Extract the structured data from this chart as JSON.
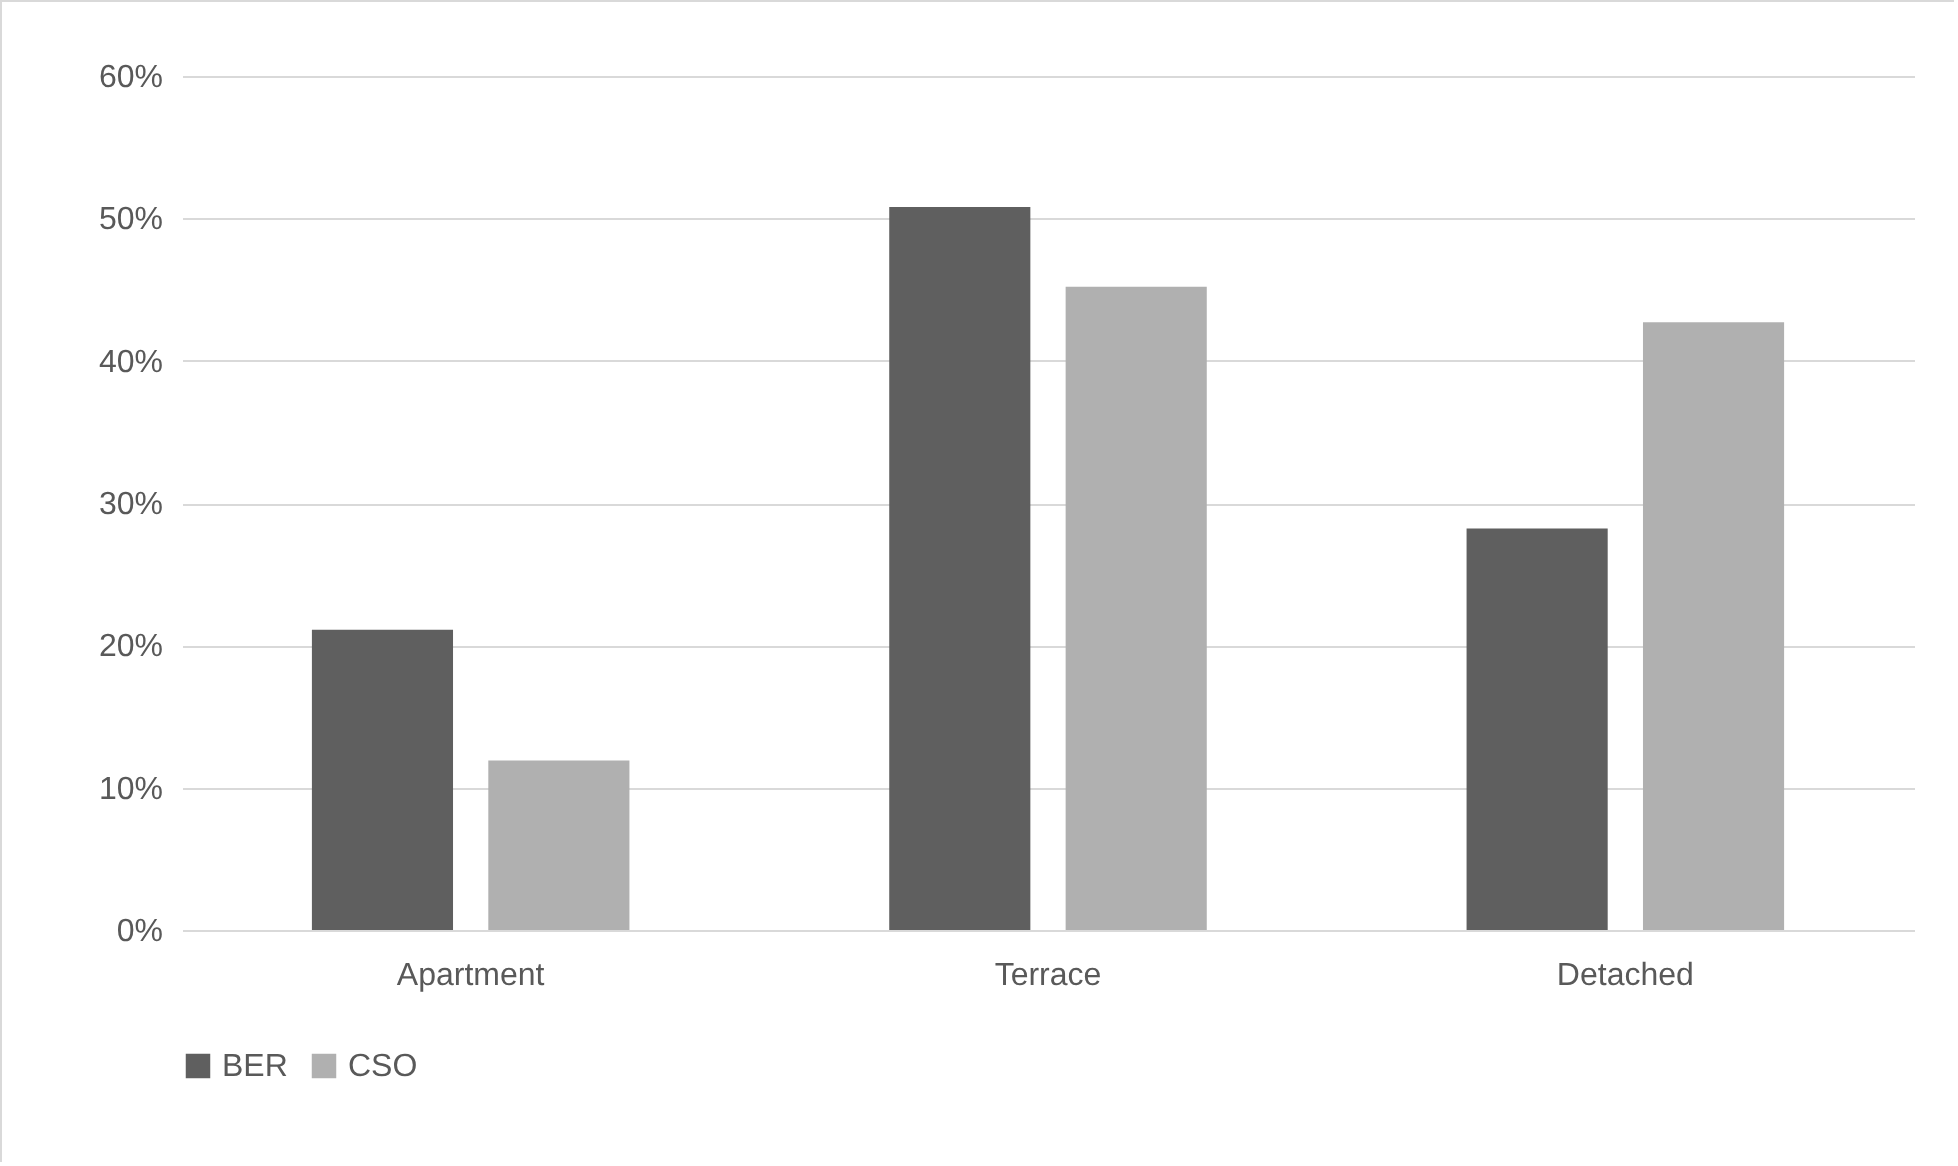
{
  "chart_data": {
    "type": "bar",
    "categories": [
      "Apartment",
      "Terrace",
      "Detached"
    ],
    "series": [
      {
        "name": "BER",
        "color": "#5f5f5f",
        "values": [
          21.1,
          50.8,
          28.2
        ]
      },
      {
        "name": "CSO",
        "color": "#b0b0b0",
        "values": [
          11.9,
          45.2,
          42.7
        ]
      }
    ],
    "ylim": [
      0,
      60
    ],
    "yticks": [
      {
        "value": 0,
        "label": "0%"
      },
      {
        "value": 10,
        "label": "10%"
      },
      {
        "value": 20,
        "label": "20%"
      },
      {
        "value": 30,
        "label": "30%"
      },
      {
        "value": 40,
        "label": "40%"
      },
      {
        "value": 50,
        "label": "50%"
      },
      {
        "value": 60,
        "label": "60%"
      }
    ],
    "grid": "y",
    "legend": "bottom"
  }
}
